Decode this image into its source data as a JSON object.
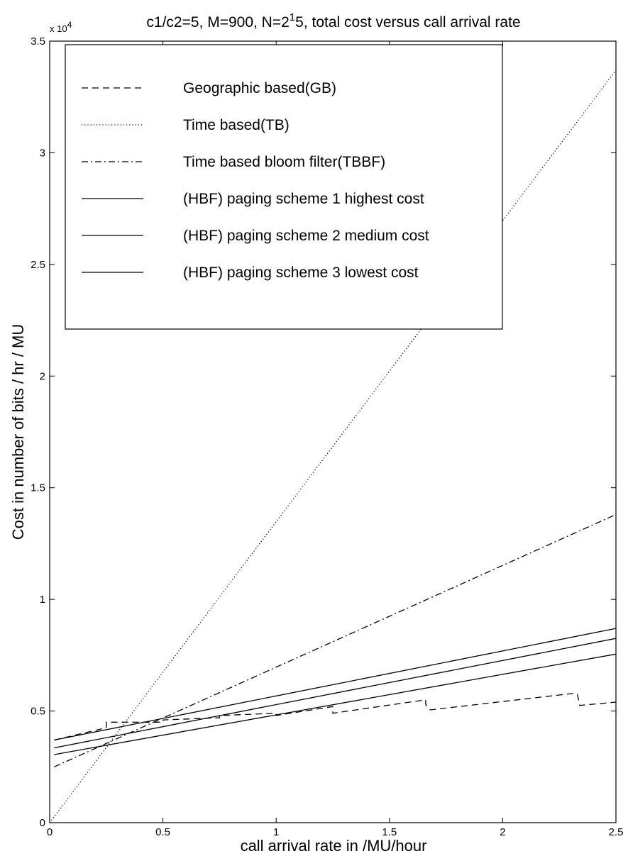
{
  "chart_data": {
    "type": "line",
    "title_parts": {
      "before": "c1/c2=5, M=900, N=2",
      "superscript": "1",
      "after": "5, total cost versus call arrival rate"
    },
    "xlabel": "call arrival rate in /MU/hour",
    "ylabel": "Cost in number of bits / hr / MU",
    "xlim": [
      0,
      2.5
    ],
    "ylim": [
      0,
      35000
    ],
    "y_multiplier_label": {
      "base": "x 10",
      "exponent": "4"
    },
    "x_ticks": [
      0,
      0.5,
      1,
      1.5,
      2,
      2.5
    ],
    "x_tick_labels": [
      "0",
      "0.5",
      "1",
      "1.5",
      "2",
      "2.5"
    ],
    "y_ticks": [
      0,
      5000,
      10000,
      15000,
      20000,
      25000,
      30000,
      35000
    ],
    "y_tick_labels": [
      "0",
      "0.5",
      "1",
      "1.5",
      "2",
      "2.5",
      "3",
      "3.5"
    ],
    "grid": false,
    "legend_position": "top-left",
    "series": [
      {
        "name": "Geographic based(GB)",
        "style": "dashed",
        "x": [
          0.02,
          0.25,
          0.25,
          0.5,
          0.5,
          0.75,
          0.75,
          1.0,
          1.0,
          1.25,
          1.25,
          1.66,
          1.66,
          1.68,
          2.32,
          2.33,
          2.34,
          2.5
        ],
        "y": [
          3700,
          4250,
          4500,
          4500,
          4600,
          4700,
          4800,
          4900,
          4800,
          5200,
          4900,
          5500,
          5300,
          5050,
          5800,
          5750,
          5250,
          5400
        ]
      },
      {
        "name": "Time based(TB)",
        "style": "dotted",
        "x": [
          0,
          2.5
        ],
        "y": [
          0,
          33700
        ]
      },
      {
        "name": "Time based bloom filter(TBBF)",
        "style": "dashdot",
        "x": [
          0.02,
          2.5
        ],
        "y": [
          2500,
          13800
        ]
      },
      {
        "name": "(HBF) paging scheme 1 highest cost",
        "style": "solid",
        "x": [
          0.02,
          2.5
        ],
        "y": [
          3700,
          8700
        ]
      },
      {
        "name": "(HBF) paging scheme 2 medium cost",
        "style": "solid",
        "x": [
          0.02,
          2.5
        ],
        "y": [
          3350,
          8250
        ]
      },
      {
        "name": "(HBF) paging scheme 3 lowest cost",
        "style": "solid",
        "x": [
          0.02,
          2.5
        ],
        "y": [
          3050,
          7550
        ]
      }
    ]
  }
}
